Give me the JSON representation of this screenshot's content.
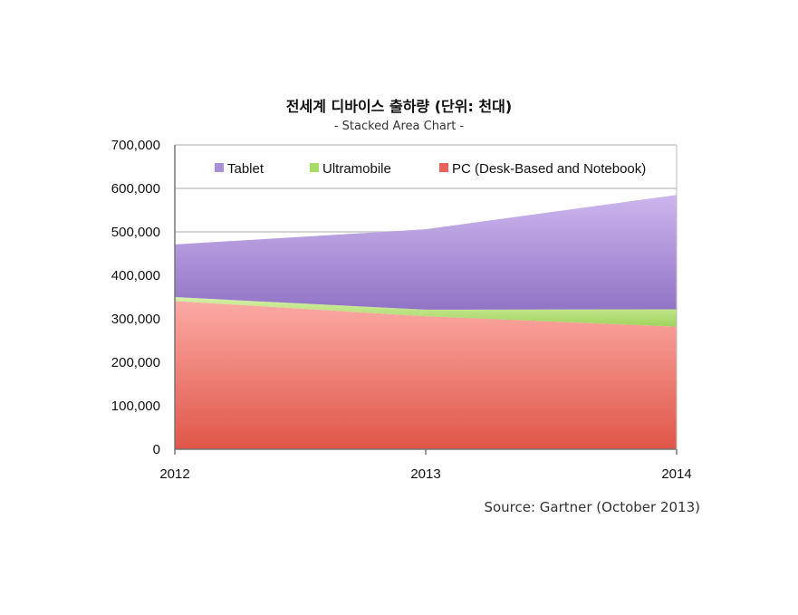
{
  "chart_data": {
    "type": "area",
    "stacked": true,
    "title": "전세계 디바이스 출하량 (단위: 천대)",
    "subtitle": "- Stacked Area Chart -",
    "source": "Source: Gartner (October 2013)",
    "x": [
      "2012",
      "2013",
      "2014"
    ],
    "ylim": [
      0,
      700000
    ],
    "yticks": [
      0,
      100000,
      200000,
      300000,
      400000,
      500000,
      600000,
      700000
    ],
    "ytick_labels": [
      "0",
      "100,000",
      "200,000",
      "300,000",
      "400,000",
      "500,000",
      "600,000",
      "700,000"
    ],
    "grid": true,
    "legend_position": "top",
    "series": [
      {
        "name": "PC (Desk-Based and Notebook)",
        "values": [
          341000,
          306000,
          282000
        ],
        "color": "#e8625a"
      },
      {
        "name": "Ultramobile",
        "values": [
          9000,
          15000,
          40000
        ],
        "color": "#b6e07a"
      },
      {
        "name": "Tablet",
        "values": [
          121000,
          185000,
          263000
        ],
        "color": "#a98fd6"
      }
    ],
    "legend_order": [
      "Tablet",
      "Ultramobile",
      "PC (Desk-Based and Notebook)"
    ]
  }
}
